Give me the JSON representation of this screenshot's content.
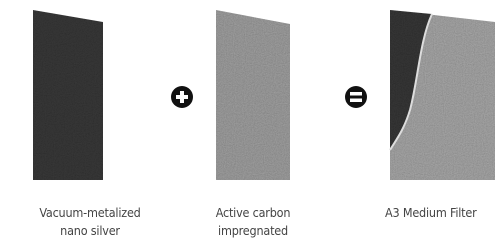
{
  "items": [
    {
      "caption": [
        "Vacuum-metalized",
        "nano silver"
      ]
    },
    {
      "caption": [
        "Active carbon",
        "impregnated"
      ]
    },
    {
      "caption": [
        "A3 Medium Filter"
      ]
    }
  ]
}
